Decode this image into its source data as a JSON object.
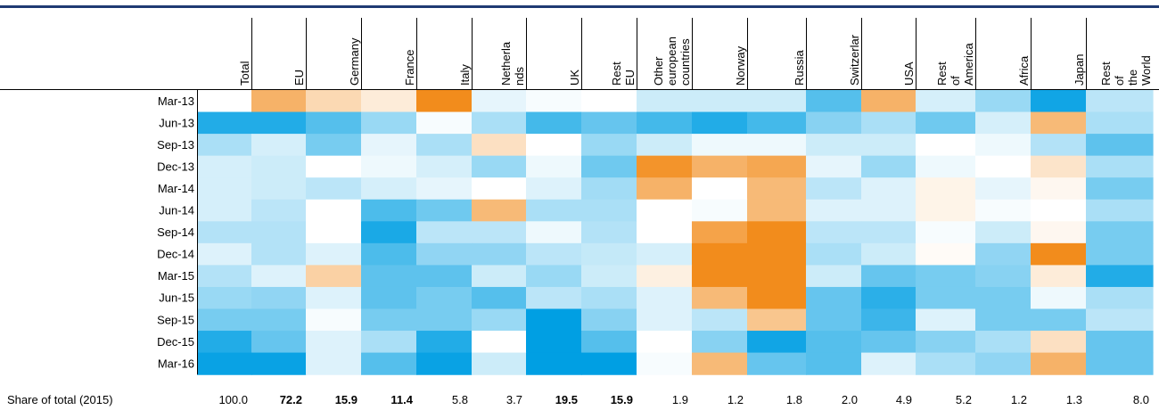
{
  "chart_data": {
    "type": "heatmap",
    "columns": [
      "Total",
      "EU",
      "Germany",
      "France",
      "Italy",
      "Netherla nds",
      "UK",
      "Rest EU",
      "Other european countries",
      "Norway",
      "Russia",
      "Switzerlar",
      "USA",
      "Rest of America",
      "Africa",
      "Japan",
      "Rest of the World"
    ],
    "rows": [
      "Mar-13",
      "Jun-13",
      "Sep-13",
      "Dec-13",
      "Mar-14",
      "Jun-14",
      "Sep-14",
      "Dec-14",
      "Mar-15",
      "Jun-15",
      "Sep-15",
      "Dec-15",
      "Mar-16"
    ],
    "values": [
      [
        null,
        2,
        1,
        0.5,
        3,
        -0.3,
        -0.1,
        0,
        -0.6,
        -0.6,
        -0.6,
        -2,
        2,
        -0.5,
        -1.2,
        -2.8,
        -0.8
      ],
      [
        -2.6,
        -2.6,
        -2,
        -1.2,
        -0.1,
        -1,
        -2.2,
        -1.8,
        -2.2,
        -2.6,
        -2.2,
        -1.4,
        -1,
        -1.7,
        -0.5,
        1.8,
        -1
      ],
      [
        -1,
        -0.5,
        -1.6,
        -0.3,
        -1,
        0.8,
        0,
        -1.2,
        -0.6,
        -0.2,
        -0.2,
        -0.6,
        -0.6,
        0,
        -0.2,
        -0.9,
        -1.9
      ],
      [
        -0.5,
        -0.6,
        0,
        -0.2,
        -0.5,
        -1.2,
        -0.2,
        -1.7,
        2.8,
        2,
        2.3,
        -0.3,
        -1.2,
        -0.2,
        0,
        0.7,
        -1
      ],
      [
        -0.5,
        -0.6,
        -0.8,
        -0.5,
        -0.3,
        0,
        -0.4,
        -1.1,
        2,
        0,
        1.8,
        -0.8,
        -0.4,
        0.3,
        -0.3,
        0.2,
        -1.6
      ],
      [
        -0.5,
        -0.8,
        0,
        -2.1,
        -1.7,
        1.8,
        -1,
        -1,
        0,
        -0.1,
        1.8,
        -0.4,
        -0.4,
        0.3,
        -0.1,
        0,
        -1
      ],
      [
        -0.9,
        -0.9,
        0,
        -2.7,
        -0.8,
        -0.8,
        -0.2,
        -0.9,
        0,
        2.4,
        3,
        -0.8,
        -0.8,
        -0.1,
        -0.6,
        0.2,
        -1.6
      ],
      [
        -0.4,
        -0.9,
        -0.4,
        -2.1,
        -1.3,
        -1.3,
        -0.8,
        -0.7,
        -0.5,
        3,
        3,
        -1,
        -0.6,
        0.1,
        -1.3,
        3,
        -1.6
      ],
      [
        -0.9,
        -0.4,
        1.2,
        -1.9,
        -1.9,
        -0.6,
        -1.2,
        -0.6,
        0.4,
        3,
        3,
        -0.6,
        -1.8,
        -1.6,
        -1.4,
        0.5,
        -2.6
      ],
      [
        -1.2,
        -1.3,
        -0.4,
        -1.9,
        -1.6,
        -2,
        -0.8,
        -1,
        -0.4,
        1.8,
        3,
        -1.8,
        -2.5,
        -1.6,
        -1.6,
        -0.2,
        -1
      ],
      [
        -1.6,
        -1.6,
        -0.1,
        -1.6,
        -1.6,
        -1.2,
        -3,
        -1.4,
        -0.4,
        -0.8,
        1.5,
        -1.8,
        -2.3,
        -0.4,
        -1.6,
        -1.6,
        -0.8
      ],
      [
        -2.6,
        -1.8,
        -0.4,
        -1,
        -2.6,
        0,
        -3,
        -2,
        0,
        -1.4,
        -2.8,
        -2,
        -1.8,
        -1.4,
        -1,
        0.8,
        -1.8
      ],
      [
        -2.9,
        -2.9,
        -0.4,
        -2,
        -2.9,
        -0.6,
        -3,
        -3,
        -0.1,
        1.8,
        -1.8,
        -2,
        -0.4,
        -1,
        -1.3,
        2,
        -1.8
      ]
    ],
    "colors": {
      "negative": "#009fe3",
      "neutral": "#ffffff",
      "positive": "#f28c1c",
      "rule": "#1f3a73"
    },
    "footer": {
      "label": "Share of total (2015)",
      "values": [
        "100.0",
        "72.2",
        "15.9",
        "11.4",
        "5.8",
        "3.7",
        "19.5",
        "15.9",
        "1.9",
        "1.2",
        "1.8",
        "2.0",
        "4.9",
        "5.2",
        "1.2",
        "1.3",
        "8.0"
      ],
      "bold": [
        false,
        true,
        true,
        true,
        false,
        false,
        true,
        true,
        false,
        false,
        false,
        false,
        false,
        false,
        false,
        false,
        false
      ]
    }
  }
}
